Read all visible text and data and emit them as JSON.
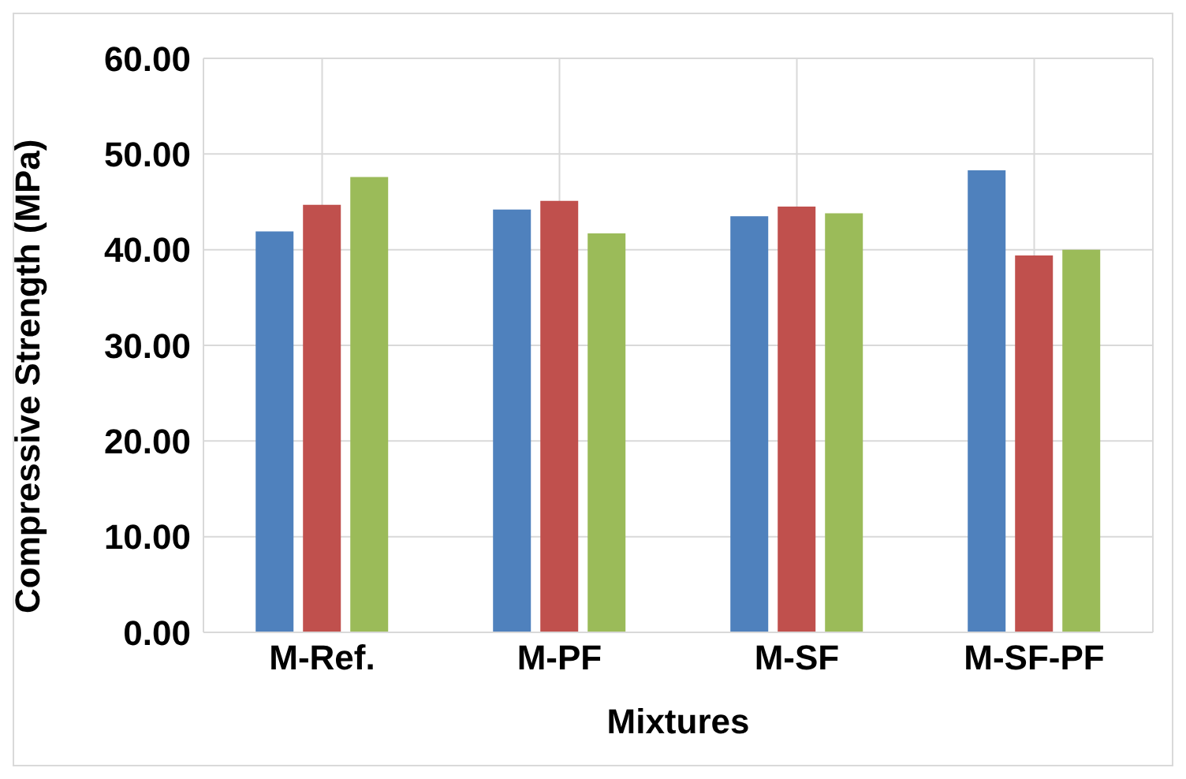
{
  "chart_data": {
    "type": "bar",
    "xlabel": "Mixtures",
    "ylabel": "Compressive Strength (MPa)",
    "categories": [
      "M-Ref.",
      "M-PF",
      "M-SF",
      "M-SF-PF"
    ],
    "series": [
      {
        "color": "#4f81bd",
        "values": [
          41.9,
          44.2,
          43.5,
          48.3
        ]
      },
      {
        "color": "#c0504d",
        "values": [
          44.7,
          45.1,
          44.5,
          39.4
        ]
      },
      {
        "color": "#9bbb59",
        "values": [
          47.6,
          41.7,
          43.8,
          40.0
        ]
      }
    ],
    "ylim": [
      0,
      60
    ],
    "yticks": [
      {
        "value": 0,
        "label": "0.00"
      },
      {
        "value": 10,
        "label": "10.00"
      },
      {
        "value": 20,
        "label": "20.00"
      },
      {
        "value": 30,
        "label": "30.00"
      },
      {
        "value": 40,
        "label": "40.00"
      },
      {
        "value": 50,
        "label": "50.00"
      },
      {
        "value": 60,
        "label": "60.00"
      }
    ],
    "grid": true
  }
}
